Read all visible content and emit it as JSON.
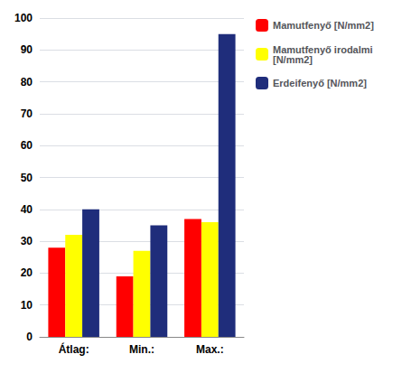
{
  "chart_data": {
    "type": "bar",
    "categories": [
      "Átlag:",
      "Min.:",
      "Max.:"
    ],
    "series": [
      {
        "name": "Mamutfenyő [N/mm2]",
        "color": "#FF0000",
        "values": [
          28,
          19,
          37
        ]
      },
      {
        "name": "Mamutfenyő irodalmi\n[N/mm2]",
        "color": "#FFFF00",
        "values": [
          32,
          27,
          36
        ]
      },
      {
        "name": "Erdeifenyő [N/mm2]",
        "color": "#1F2D7B",
        "values": [
          40,
          35,
          95
        ]
      }
    ],
    "ylim": [
      0,
      100
    ],
    "yticks": [
      0,
      10,
      20,
      30,
      40,
      50,
      60,
      70,
      80,
      90,
      100
    ],
    "grid": true,
    "legend": "right"
  }
}
